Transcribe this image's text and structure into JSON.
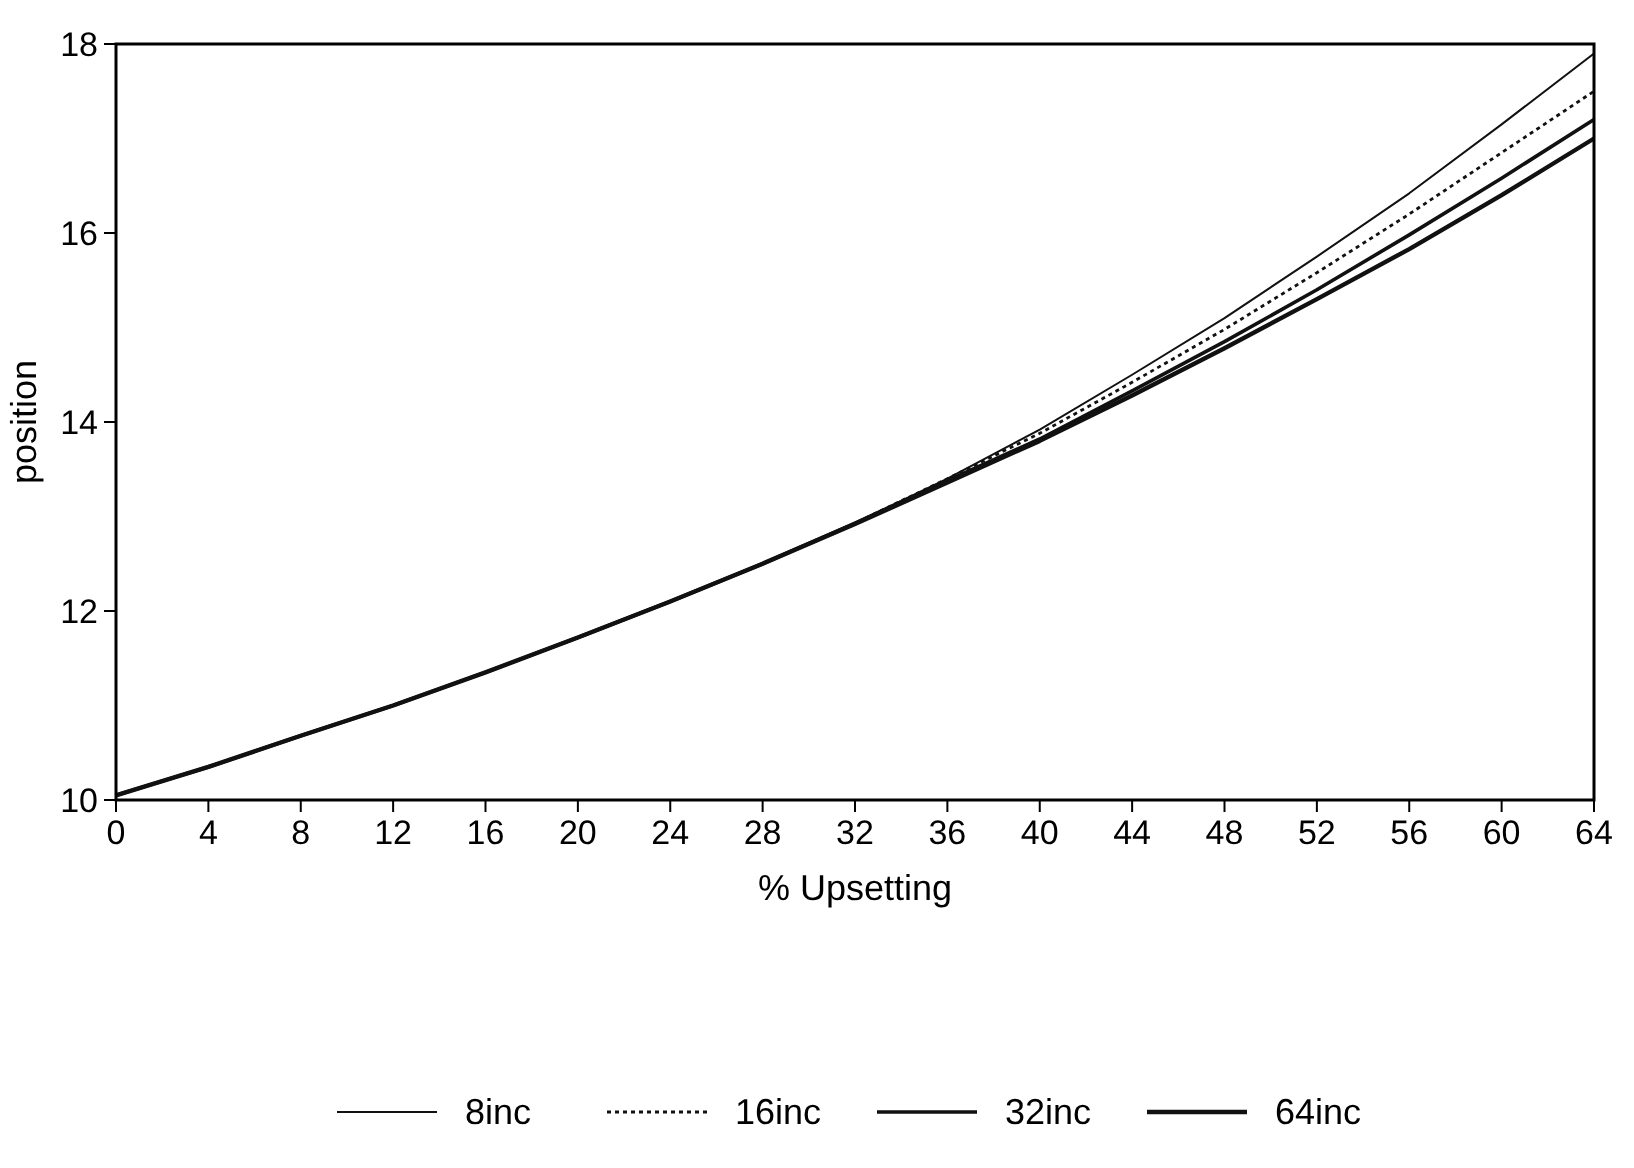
{
  "chart_data": {
    "type": "line",
    "xlabel": "% Upsetting",
    "ylabel": "position",
    "x": [
      0,
      4,
      8,
      12,
      16,
      20,
      24,
      28,
      32,
      36,
      40,
      44,
      48,
      52,
      56,
      60,
      64
    ],
    "xlim": [
      0,
      64
    ],
    "xticks": [
      0,
      4,
      8,
      12,
      16,
      20,
      24,
      28,
      32,
      36,
      40,
      44,
      48,
      52,
      56,
      60,
      64
    ],
    "ylim": [
      10,
      18
    ],
    "yticks": [
      10,
      12,
      14,
      16,
      18
    ],
    "grid": false,
    "legend": "bottom",
    "marker": "none",
    "series": [
      {
        "name": "8inc",
        "color": "#111111",
        "line_style": "solid",
        "values": [
          10.05,
          10.35,
          10.68,
          11.0,
          11.35,
          11.72,
          12.1,
          12.5,
          12.93,
          13.4,
          13.92,
          14.5,
          15.1,
          15.75,
          16.42,
          17.15,
          17.9
        ]
      },
      {
        "name": "16inc",
        "color": "#111111",
        "line_style": "dotted",
        "values": [
          10.05,
          10.35,
          10.68,
          11.0,
          11.35,
          11.72,
          12.1,
          12.5,
          12.93,
          13.4,
          13.88,
          14.42,
          14.98,
          15.58,
          16.2,
          16.85,
          17.5
        ]
      },
      {
        "name": "32inc",
        "color": "#111111",
        "line_style": "solid",
        "values": [
          10.05,
          10.35,
          10.68,
          11.0,
          11.35,
          11.72,
          12.1,
          12.5,
          12.93,
          13.38,
          13.82,
          14.33,
          14.85,
          15.4,
          15.98,
          16.58,
          17.2
        ]
      },
      {
        "name": "64inc",
        "color": "#111111",
        "line_style": "solid",
        "values": [
          10.05,
          10.35,
          10.68,
          11.0,
          11.35,
          11.72,
          12.1,
          12.5,
          12.92,
          13.36,
          13.8,
          14.28,
          14.78,
          15.3,
          15.83,
          16.4,
          17.0
        ]
      }
    ]
  }
}
